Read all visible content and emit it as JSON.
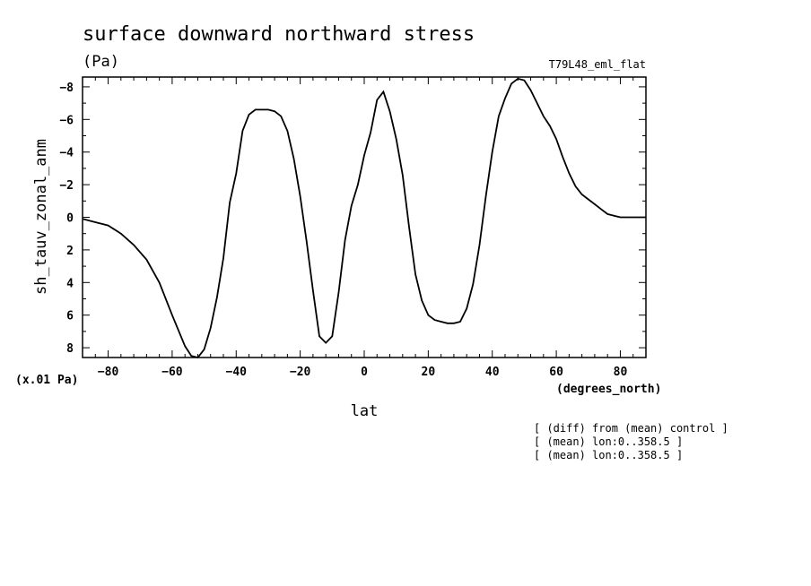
{
  "chart_data": {
    "type": "line",
    "title": "surface downward northward stress",
    "units": "(Pa)",
    "experiment": "T79L48_eml_flat",
    "xlabel": "lat",
    "xunits": "(degrees_north)",
    "ylabel": "sh_tauv_zonal_anm",
    "yscale_note": "(x.01 Pa)",
    "xlim": [
      -88,
      88
    ],
    "ylim": [
      8.6,
      -8.6
    ],
    "y_inverted": true,
    "xticks": [
      -80,
      -60,
      -40,
      -20,
      0,
      20,
      40,
      60,
      80
    ],
    "yticks": [
      -8,
      -6,
      -4,
      -2,
      0,
      2,
      4,
      6,
      8
    ],
    "grid": false,
    "notes": [
      "[ (diff) from (mean) control ]",
      "[ (mean) lon:0..358.5 ]",
      "[ (mean) lon:0..358.5 ]"
    ],
    "series": [
      {
        "x": [
          -88,
          -84,
          -80,
          -76,
          -72,
          -68,
          -64,
          -60,
          -56,
          -54,
          -52,
          -50,
          -48,
          -46,
          -44,
          -42,
          -40,
          -38,
          -36,
          -34,
          -32,
          -30,
          -28,
          -26,
          -24,
          -22,
          -20,
          -18,
          -16,
          -14,
          -12,
          -10,
          -8,
          -6,
          -4,
          -2,
          0,
          2,
          4,
          6,
          8,
          10,
          12,
          14,
          16,
          18,
          20,
          22,
          24,
          26,
          28,
          30,
          32,
          34,
          36,
          38,
          40,
          42,
          44,
          46,
          48,
          50,
          52,
          54,
          56,
          58,
          60,
          62,
          64,
          66,
          68,
          70,
          72,
          74,
          76,
          78,
          80,
          82,
          84,
          86,
          88
        ],
        "y": [
          0.1,
          0.3,
          0.5,
          1.0,
          1.7,
          2.6,
          4.0,
          6.0,
          7.9,
          8.5,
          8.6,
          8.1,
          6.8,
          4.9,
          2.5,
          -0.9,
          -2.7,
          -5.3,
          -6.3,
          -6.6,
          -6.6,
          -6.6,
          -6.5,
          -6.2,
          -5.3,
          -3.6,
          -1.3,
          1.5,
          4.5,
          7.3,
          7.7,
          7.3,
          4.6,
          1.4,
          -0.7,
          -2.0,
          -3.8,
          -5.2,
          -7.2,
          -7.7,
          -6.5,
          -4.8,
          -2.6,
          0.6,
          3.5,
          5.1,
          6.0,
          6.3,
          6.4,
          6.5,
          6.5,
          6.4,
          5.6,
          4.1,
          1.7,
          -1.3,
          -4.0,
          -6.2,
          -7.3,
          -8.2,
          -8.5,
          -8.4,
          -7.8,
          -7.0,
          -6.2,
          -5.6,
          -4.8,
          -3.7,
          -2.7,
          -1.9,
          -1.4,
          -1.1,
          -0.8,
          -0.5,
          -0.2,
          -0.1,
          0.0,
          0.0,
          0.0,
          0.0,
          0.0
        ]
      }
    ]
  }
}
